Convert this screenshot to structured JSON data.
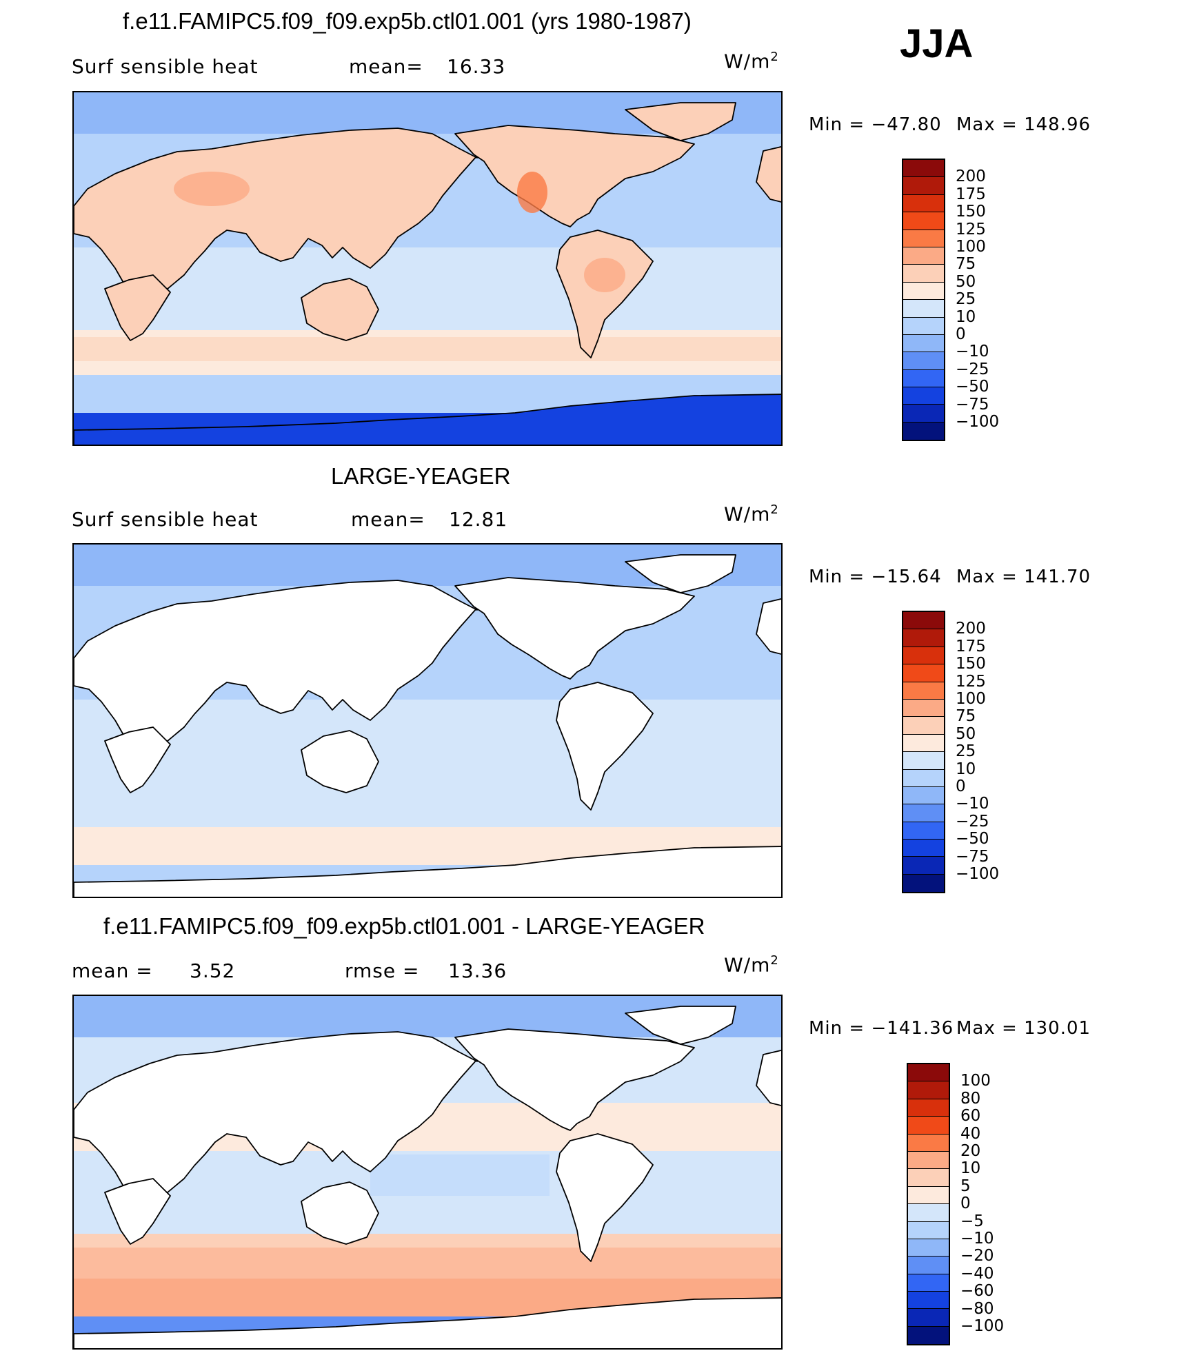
{
  "season": "JJA",
  "panels": [
    {
      "title": "f.e11.FAMIPC5.f09_f09.exp5b.ctl01.001 (yrs 1980-1987)",
      "variable": "Surf  sensible heat",
      "stat1_label": "mean=",
      "stat1_value": "16.33",
      "units": "W/m",
      "units_sup": "2",
      "min_label": "Min  =  −47.80",
      "max_label": "Max  =  148.96",
      "mode": "model",
      "colorbar": [
        "200",
        "175",
        "150",
        "125",
        "100",
        "75",
        "50",
        "25",
        "10",
        "0",
        "−10",
        "−25",
        "−50",
        "−75",
        "−100"
      ]
    },
    {
      "title": "LARGE-YEAGER",
      "variable": "Surf  sensible heat",
      "stat1_label": "mean=",
      "stat1_value": "12.81",
      "units": "W/m",
      "units_sup": "2",
      "min_label": "Min  =  −15.64",
      "max_label": "Max  =  141.70",
      "mode": "obs",
      "colorbar": [
        "200",
        "175",
        "150",
        "125",
        "100",
        "75",
        "50",
        "25",
        "10",
        "0",
        "−10",
        "−25",
        "−50",
        "−75",
        "−100"
      ]
    },
    {
      "title": "f.e11.FAMIPC5.f09_f09.exp5b.ctl01.001 - LARGE-YEAGER",
      "variable": "",
      "stat1_label": "mean  =",
      "stat1_value": "3.52",
      "stat2_label": "rmse  =",
      "stat2_value": "13.36",
      "units": "W/m",
      "units_sup": "2",
      "min_label": "Min  =  −141.36",
      "max_label": "Max  =  130.01",
      "mode": "diff",
      "colorbar": [
        "100",
        "80",
        "60",
        "40",
        "20",
        "10",
        "5",
        "0",
        "−5",
        "−10",
        "−20",
        "−40",
        "−60",
        "−80",
        "−100"
      ]
    }
  ],
  "palette": [
    "#8b0a0a",
    "#b01a0a",
    "#d8300c",
    "#f04a18",
    "#fa7a45",
    "#fbaa86",
    "#fcd0b8",
    "#fdeadd",
    "#d4e6fa",
    "#b5d3fb",
    "#8fb7f8",
    "#5f8ff5",
    "#3266f4",
    "#1442e0",
    "#0a27b6",
    "#03127c"
  ],
  "chart_data": [
    {
      "type": "heatmap",
      "title": "f.e11.FAMIPC5.f09_f09.exp5b.ctl01.001 (yrs 1980-1987)",
      "variable": "Surf sensible heat",
      "units": "W/m2",
      "season": "JJA",
      "mean": 16.33,
      "min": -47.8,
      "max": 148.96,
      "levels": [
        -100,
        -75,
        -50,
        -25,
        -10,
        0,
        10,
        25,
        50,
        75,
        100,
        125,
        150,
        175,
        200
      ]
    },
    {
      "type": "heatmap",
      "title": "LARGE-YEAGER",
      "variable": "Surf sensible heat",
      "units": "W/m2",
      "season": "JJA",
      "mean": 12.81,
      "min": -15.64,
      "max": 141.7,
      "levels": [
        -100,
        -75,
        -50,
        -25,
        -10,
        0,
        10,
        25,
        50,
        75,
        100,
        125,
        150,
        175,
        200
      ]
    },
    {
      "type": "heatmap",
      "title": "f.e11.FAMIPC5.f09_f09.exp5b.ctl01.001 - LARGE-YEAGER",
      "units": "W/m2",
      "season": "JJA",
      "mean": 3.52,
      "rmse": 13.36,
      "min": -141.36,
      "max": 130.01,
      "levels": [
        -100,
        -80,
        -60,
        -40,
        -20,
        -10,
        -5,
        0,
        5,
        10,
        20,
        40,
        60,
        80,
        100
      ]
    }
  ]
}
